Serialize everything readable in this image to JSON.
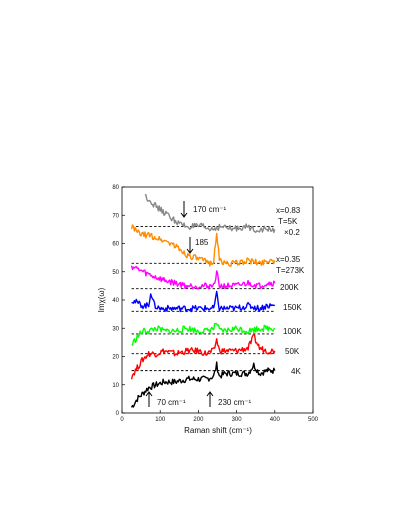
{
  "chart_data": {
    "type": "line",
    "xlabel": "Raman shift (cm⁻¹)",
    "ylabel": "Imχ(ω)",
    "xlim": [
      0,
      500
    ],
    "ylim": [
      0,
      80
    ],
    "x_ticks": [
      "0",
      "100",
      "200",
      "300",
      "400",
      "500"
    ],
    "y_ticks": [
      "0",
      "10",
      "20",
      "30",
      "40",
      "50",
      "60",
      "70",
      "80"
    ],
    "grid": false,
    "series": [
      {
        "name": "4K",
        "color": "#000000",
        "baseline": 15,
        "x": [
          25,
          40,
          55,
          70,
          90,
          110,
          140,
          170,
          200,
          220,
          240,
          248,
          255,
          270,
          300,
          330,
          345,
          360,
          380,
          400
        ],
        "y": [
          2,
          5,
          7,
          9,
          10,
          11,
          11,
          12,
          12,
          12,
          13,
          17,
          13,
          14,
          14,
          14,
          17,
          14,
          15,
          15
        ]
      },
      {
        "name": "50K",
        "color": "#ff0000",
        "baseline": 21,
        "x": [
          25,
          40,
          55,
          70,
          90,
          110,
          140,
          170,
          200,
          220,
          240,
          248,
          255,
          270,
          300,
          330,
          345,
          360,
          380,
          400
        ],
        "y": [
          13,
          16,
          19,
          21,
          21,
          22,
          21,
          22,
          22,
          21,
          22,
          26,
          22,
          22,
          22,
          23,
          27,
          23,
          22,
          22
        ]
      },
      {
        "name": "100K",
        "color": "#00ff00",
        "baseline": 28,
        "x": [
          25,
          40,
          55,
          70,
          90,
          110,
          140,
          170,
          200,
          220,
          240,
          248,
          255,
          270,
          300,
          330,
          360,
          380,
          400
        ],
        "y": [
          24,
          27,
          29,
          29,
          30,
          29,
          29,
          30,
          29,
          29,
          30,
          32,
          29,
          29,
          30,
          29,
          30,
          30,
          30
        ]
      },
      {
        "name": "150K",
        "color": "#0000ff",
        "baseline": 36,
        "x": [
          25,
          40,
          55,
          70,
          75,
          85,
          100,
          130,
          160,
          190,
          220,
          240,
          248,
          255,
          270,
          300,
          330,
          360,
          380,
          400
        ],
        "y": [
          40,
          39,
          38,
          38,
          43,
          38,
          37,
          37,
          37,
          37,
          37,
          37,
          42,
          37,
          37,
          37,
          38,
          37,
          38,
          38
        ]
      },
      {
        "name": "200K",
        "color": "#ff00ff",
        "baseline": 44,
        "x": [
          25,
          40,
          55,
          70,
          90,
          110,
          140,
          170,
          200,
          220,
          240,
          248,
          255,
          270,
          300,
          330,
          360,
          380,
          400
        ],
        "y": [
          52,
          51,
          50,
          49,
          48,
          47,
          46,
          45,
          45,
          45,
          45,
          50,
          45,
          45,
          45,
          46,
          45,
          46,
          46
        ]
      },
      {
        "name": "x=0.35 T=273K",
        "color": "#ff8c00",
        "baseline": 53,
        "x": [
          25,
          40,
          55,
          70,
          90,
          110,
          130,
          150,
          170,
          190,
          210,
          230,
          240,
          248,
          255,
          270,
          300,
          330,
          360,
          380,
          400
        ],
        "y": [
          66,
          64,
          63,
          63,
          62,
          61,
          60,
          58,
          56,
          55,
          54,
          53,
          54,
          64,
          54,
          53,
          53,
          54,
          53,
          54,
          54
        ]
      },
      {
        "name": "x=0.83 T=5K ×0.2",
        "color": "#888888",
        "baseline": 66,
        "x": [
          60,
          75,
          90,
          110,
          130,
          150,
          170,
          190,
          210,
          230,
          260,
          290,
          320,
          350,
          380,
          400
        ],
        "y": [
          77,
          75,
          73,
          71,
          69,
          67,
          66,
          66,
          66,
          65,
          66,
          65,
          66,
          65,
          65,
          65
        ]
      }
    ],
    "annotations": [
      {
        "text": "170 cm⁻¹",
        "x": 170
      },
      {
        "text": "185",
        "x": 185
      },
      {
        "text": "70 cm⁻¹",
        "x": 70
      },
      {
        "text": "230 cm⁻¹",
        "x": 230
      }
    ],
    "legend_labels": {
      "gray": [
        "x=0.83",
        "T=5K",
        "×0.2"
      ],
      "orange": [
        "x=0.35",
        "T=273K"
      ],
      "magenta": "200K",
      "blue": "150K",
      "green": "100K",
      "red": "50K",
      "black": "4K"
    }
  }
}
